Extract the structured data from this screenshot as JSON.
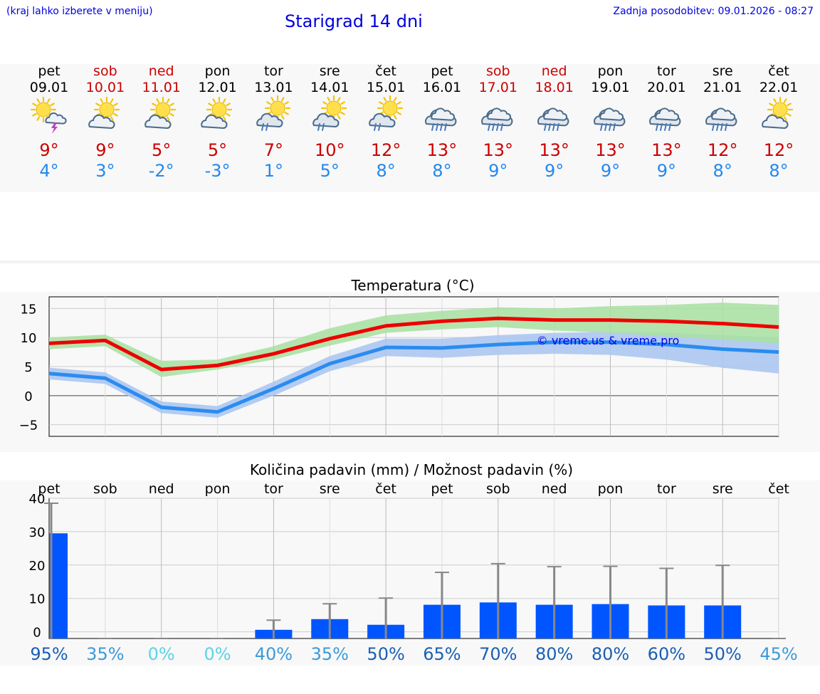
{
  "header": {
    "left_note": "(kraj lahko izberete v meniju)",
    "title": "Starigrad 14 dni",
    "updated": "Zadnja posodobitev: 09.01.2026 - 08:27"
  },
  "days": [
    {
      "name": "pet",
      "date": "09.01",
      "weekend": false,
      "icon": "sun-cloud-thunder-icon",
      "tmax": "9°",
      "tmin": "4°"
    },
    {
      "name": "sob",
      "date": "10.01",
      "weekend": true,
      "icon": "sun-cloud-icon",
      "tmax": "9°",
      "tmin": "3°"
    },
    {
      "name": "ned",
      "date": "11.01",
      "weekend": true,
      "icon": "sun-cloud-icon",
      "tmax": "5°",
      "tmin": "-2°"
    },
    {
      "name": "pon",
      "date": "12.01",
      "weekend": false,
      "icon": "sun-cloud-icon",
      "tmax": "5°",
      "tmin": "-3°"
    },
    {
      "name": "tor",
      "date": "13.01",
      "weekend": false,
      "icon": "sun-cloud-rain-icon",
      "tmax": "7°",
      "tmin": "1°"
    },
    {
      "name": "sre",
      "date": "14.01",
      "weekend": false,
      "icon": "sun-cloud-rain-icon",
      "tmax": "10°",
      "tmin": "5°"
    },
    {
      "name": "čet",
      "date": "15.01",
      "weekend": false,
      "icon": "sun-cloud-rain-icon",
      "tmax": "12°",
      "tmin": "8°"
    },
    {
      "name": "pet",
      "date": "16.01",
      "weekend": false,
      "icon": "cloud-rain-icon",
      "tmax": "13°",
      "tmin": "8°"
    },
    {
      "name": "sob",
      "date": "17.01",
      "weekend": true,
      "icon": "cloud-rain-icon",
      "tmax": "13°",
      "tmin": "9°"
    },
    {
      "name": "ned",
      "date": "18.01",
      "weekend": true,
      "icon": "cloud-rain-icon",
      "tmax": "13°",
      "tmin": "9°"
    },
    {
      "name": "pon",
      "date": "19.01",
      "weekend": false,
      "icon": "cloud-rain-icon",
      "tmax": "13°",
      "tmin": "9°"
    },
    {
      "name": "tor",
      "date": "20.01",
      "weekend": false,
      "icon": "cloud-rain-icon",
      "tmax": "13°",
      "tmin": "9°"
    },
    {
      "name": "sre",
      "date": "21.01",
      "weekend": false,
      "icon": "cloud-rain-icon",
      "tmax": "12°",
      "tmin": "8°"
    },
    {
      "name": "čet",
      "date": "22.01",
      "weekend": false,
      "icon": "sun-cloud-icon",
      "tmax": "12°",
      "tmin": "8°"
    }
  ],
  "colors": {
    "max_line": "#ee0000",
    "max_band": "#a8e0a0",
    "min_line": "#2a8cf0",
    "min_band": "#a8c4f0",
    "precip_bar": "#0055ff",
    "whisker": "#888888",
    "watermark": "#0000ee"
  },
  "chart_data": [
    {
      "type": "line",
      "title": "Temperatura (°C)",
      "watermark": "© vreme.us & vreme.pro",
      "ylim": [
        -7,
        17
      ],
      "yticks": [
        15,
        10,
        5,
        0,
        -5
      ],
      "ytick_labels": [
        "15",
        "10",
        "5",
        "0",
        "−5"
      ],
      "x": [
        0,
        1,
        2,
        3,
        4,
        5,
        6,
        7,
        8,
        9,
        10,
        11,
        12,
        13
      ],
      "series": [
        {
          "name": "max",
          "values": [
            9,
            9.5,
            4.5,
            5.2,
            7.2,
            9.8,
            12,
            12.8,
            13.3,
            13,
            13,
            12.8,
            12.4,
            11.8
          ],
          "band_low": [
            8,
            8.5,
            3.2,
            4.5,
            6.2,
            8.6,
            10.8,
            11.4,
            11.8,
            11.2,
            10.8,
            10.2,
            9.6,
            9.0
          ],
          "band_high": [
            10,
            10.5,
            6,
            6.2,
            8.5,
            11.6,
            13.8,
            14.6,
            15.2,
            15.0,
            15.4,
            15.6,
            16.0,
            15.6
          ]
        },
        {
          "name": "min",
          "values": [
            3.8,
            3,
            -2,
            -2.8,
            1.2,
            5.5,
            8.3,
            8.2,
            8.8,
            9.2,
            9.2,
            8.8,
            8,
            7.5
          ],
          "band_low": [
            2.8,
            2,
            -3,
            -3.8,
            0,
            4.2,
            6.8,
            6.5,
            7.0,
            7.2,
            7.0,
            6.2,
            4.8,
            3.8
          ],
          "band_high": [
            4.8,
            4,
            -1,
            -1.8,
            2.4,
            6.8,
            9.8,
            9.8,
            10.4,
            10.8,
            11.0,
            10.8,
            10.4,
            10.0
          ]
        }
      ]
    },
    {
      "type": "bar",
      "title": "Količina padavin (mm) / Možnost padavin (%)",
      "categories": [
        "pet",
        "sob",
        "ned",
        "pon",
        "tor",
        "sre",
        "čet",
        "pet",
        "sob",
        "ned",
        "pon",
        "tor",
        "sre",
        "čet"
      ],
      "ylim": [
        -2,
        40
      ],
      "yticks": [
        40,
        30,
        20,
        10,
        0
      ],
      "ytick_labels": [
        "40",
        "30",
        "20",
        "10",
        "0"
      ],
      "values": [
        29.5,
        0,
        0,
        0,
        0.6,
        3.8,
        2.1,
        8.1,
        8.8,
        8.1,
        8.3,
        7.9,
        7.9,
        0
      ],
      "whisker_max": [
        38.5,
        0,
        0,
        0,
        3.5,
        8.4,
        10.1,
        17.8,
        20.4,
        19.5,
        19.6,
        19.0,
        19.9,
        0
      ],
      "probability": [
        "95%",
        "35%",
        "0%",
        "0%",
        "40%",
        "35%",
        "50%",
        "65%",
        "70%",
        "80%",
        "80%",
        "60%",
        "50%",
        "45%"
      ],
      "probability_colors": [
        "#1a5fb4",
        "#3d9ad8",
        "#5ad4e6",
        "#5ad4e6",
        "#3d9ad8",
        "#3d9ad8",
        "#1a5fb4",
        "#1a5fb4",
        "#1a5fb4",
        "#1a5fb4",
        "#1a5fb4",
        "#1a5fb4",
        "#1a5fb4",
        "#3d9ad8"
      ]
    }
  ]
}
